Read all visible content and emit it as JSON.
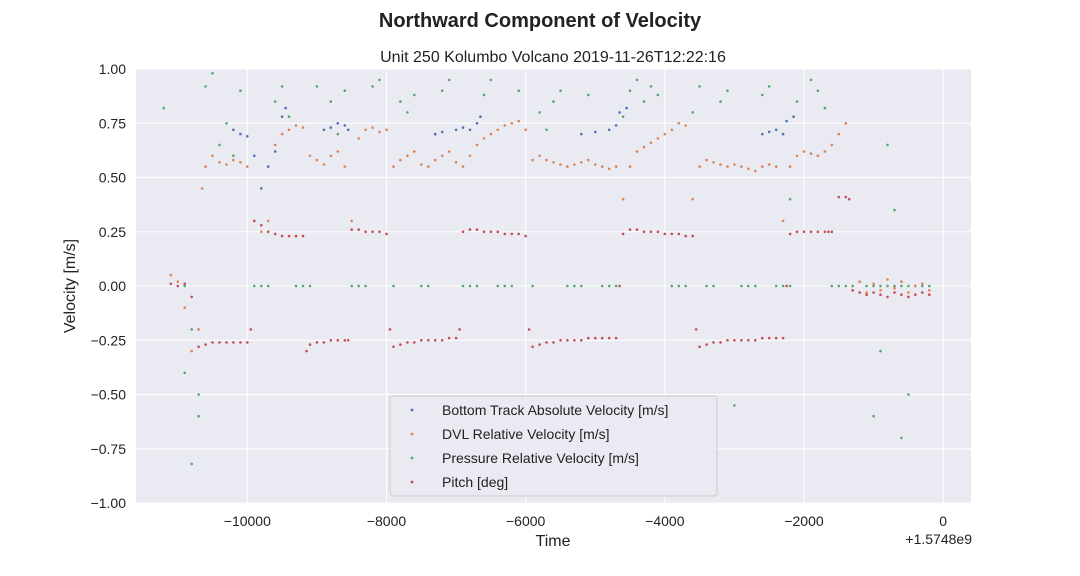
{
  "chart_data": {
    "type": "scatter",
    "title": "Northward Component of Velocity",
    "subtitle": "Unit 250 Kolumbo Volcano 2019-11-26T12:22:16",
    "xlabel": "Time",
    "ylabel": "Velocity [m/s]",
    "x_offset_label": "+1.5748e9",
    "xlim": [
      -11600,
      400
    ],
    "ylim": [
      -1.0,
      1.0
    ],
    "x_ticks": [
      -10000,
      -8000,
      -6000,
      -4000,
      -2000,
      0
    ],
    "x_tick_labels": [
      "−10000",
      "−8000",
      "−6000",
      "−4000",
      "−2000",
      "0"
    ],
    "y_ticks": [
      -1.0,
      -0.75,
      -0.5,
      -0.25,
      0.0,
      0.25,
      0.5,
      0.75,
      1.0
    ],
    "y_tick_labels": [
      "−1.00",
      "−0.75",
      "−0.50",
      "−0.25",
      "0.00",
      "0.25",
      "0.50",
      "0.75",
      "1.00"
    ],
    "grid": true,
    "legend_position": "lower-center",
    "background": "#eaeaf2",
    "series": [
      {
        "name": "Bottom Track Absolute Velocity [m/s]",
        "color": "#4c72b0",
        "x": [
          -10200,
          -10100,
          -10000,
          -9900,
          -9800,
          -9700,
          -9600,
          -9500,
          -9450,
          -8900,
          -8800,
          -8700,
          -8600,
          -8550,
          -7300,
          -7200,
          -7000,
          -6900,
          -6800,
          -6700,
          -6650,
          -5200,
          -5000,
          -4800,
          -4700,
          -4650,
          -4550,
          -2600,
          -2500,
          -2400,
          -2300,
          -2250,
          -2150
        ],
        "y": [
          0.72,
          0.7,
          0.69,
          0.6,
          0.45,
          0.55,
          0.62,
          0.78,
          0.82,
          0.72,
          0.73,
          0.75,
          0.74,
          0.72,
          0.7,
          0.71,
          0.72,
          0.73,
          0.72,
          0.75,
          0.78,
          0.7,
          0.71,
          0.72,
          0.74,
          0.8,
          0.82,
          0.7,
          0.71,
          0.72,
          0.7,
          0.76,
          0.78
        ]
      },
      {
        "name": "DVL Relative Velocity [m/s]",
        "color": "#dd8452",
        "x": [
          -11100,
          -11000,
          -10900,
          -10800,
          -10700,
          -10650,
          -10600,
          -10500,
          -10400,
          -10300,
          -10200,
          -10100,
          -10000,
          -9900,
          -9800,
          -9700,
          -9600,
          -9500,
          -9400,
          -9300,
          -9200,
          -9100,
          -9000,
          -8900,
          -8800,
          -8700,
          -8600,
          -8500,
          -8400,
          -8300,
          -8200,
          -8100,
          -8000,
          -7900,
          -7800,
          -7700,
          -7600,
          -7500,
          -7400,
          -7300,
          -7200,
          -7100,
          -7000,
          -6900,
          -6800,
          -6700,
          -6600,
          -6500,
          -6400,
          -6300,
          -6200,
          -6100,
          -6000,
          -5900,
          -5800,
          -5700,
          -5600,
          -5500,
          -5400,
          -5300,
          -5200,
          -5100,
          -5000,
          -4900,
          -4800,
          -4700,
          -4600,
          -4500,
          -4400,
          -4300,
          -4200,
          -4100,
          -4000,
          -3900,
          -3800,
          -3700,
          -3600,
          -3500,
          -3400,
          -3300,
          -3200,
          -3100,
          -3000,
          -2900,
          -2800,
          -2700,
          -2600,
          -2500,
          -2400,
          -2300,
          -2200,
          -2100,
          -2000,
          -1900,
          -1800,
          -1700,
          -1600,
          -1500,
          -1400,
          -1300,
          -1200,
          -1100,
          -1000,
          -900,
          -800,
          -700,
          -600,
          -500,
          -400,
          -300,
          -200
        ],
        "y": [
          0.05,
          0.02,
          -0.1,
          -0.3,
          -0.2,
          0.45,
          0.55,
          0.6,
          0.57,
          0.56,
          0.58,
          0.57,
          0.55,
          0.3,
          0.25,
          0.3,
          0.65,
          0.7,
          0.72,
          0.74,
          0.73,
          0.6,
          0.58,
          0.56,
          0.6,
          0.62,
          0.55,
          0.3,
          0.68,
          0.72,
          0.73,
          0.71,
          0.72,
          0.55,
          0.58,
          0.6,
          0.62,
          0.56,
          0.55,
          0.58,
          0.6,
          0.62,
          0.57,
          0.55,
          0.6,
          0.65,
          0.68,
          0.7,
          0.72,
          0.74,
          0.75,
          0.76,
          0.72,
          0.58,
          0.6,
          0.58,
          0.57,
          0.56,
          0.55,
          0.56,
          0.57,
          0.58,
          0.56,
          0.55,
          0.54,
          0.55,
          0.4,
          0.55,
          0.62,
          0.64,
          0.66,
          0.68,
          0.7,
          0.72,
          0.75,
          0.74,
          0.4,
          0.55,
          0.58,
          0.57,
          0.56,
          0.55,
          0.56,
          0.55,
          0.54,
          0.53,
          0.55,
          0.56,
          0.55,
          0.3,
          0.55,
          0.6,
          0.62,
          0.61,
          0.6,
          0.62,
          0.65,
          0.7,
          0.75,
          -0.02,
          0.02,
          -0.03,
          0.01,
          -0.02,
          0.03,
          -0.01,
          0.02,
          -0.03,
          0.0,
          0.01,
          -0.02
        ]
      },
      {
        "name": "Pressure Relative Velocity [m/s]",
        "color": "#55a868",
        "x": [
          -11200,
          -10900,
          -10800,
          -10700,
          -10600,
          -10500,
          -10400,
          -10300,
          -10200,
          -10100,
          -9900,
          -9800,
          -9700,
          -9600,
          -9500,
          -9400,
          -9300,
          -9200,
          -9100,
          -9000,
          -8800,
          -8700,
          -8600,
          -8500,
          -8400,
          -8300,
          -8200,
          -8100,
          -7900,
          -7800,
          -7700,
          -7600,
          -7500,
          -7400,
          -7300,
          -7200,
          -7100,
          -6900,
          -6800,
          -6700,
          -6600,
          -6500,
          -6400,
          -6300,
          -6200,
          -6100,
          -5900,
          -5800,
          -5700,
          -5600,
          -5500,
          -5400,
          -5300,
          -5200,
          -5100,
          -4900,
          -4800,
          -4700,
          -4600,
          -4500,
          -4400,
          -4300,
          -4200,
          -4100,
          -3900,
          -3800,
          -3700,
          -3600,
          -3500,
          -3400,
          -3300,
          -3200,
          -3100,
          -2900,
          -2800,
          -2700,
          -2600,
          -2500,
          -2400,
          -2300,
          -2200,
          -2100,
          -1900,
          -1800,
          -1700,
          -1600,
          -1500,
          -1400,
          -1300,
          -1100,
          -1000,
          -900,
          -800,
          -700,
          -600,
          -500,
          -400,
          -300,
          -200,
          -10800,
          -10700,
          -10900,
          -1000,
          -900,
          -800,
          -700,
          -600,
          -500,
          -3000,
          -2200
        ],
        "y": [
          0.82,
          0.0,
          -0.2,
          -0.5,
          0.92,
          0.98,
          0.65,
          0.75,
          0.6,
          0.9,
          0.0,
          0.0,
          0.0,
          0.85,
          0.92,
          0.78,
          0.0,
          0.0,
          0.0,
          0.92,
          0.85,
          0.7,
          0.9,
          0.0,
          0.0,
          0.0,
          0.92,
          0.95,
          0.0,
          0.85,
          0.8,
          0.88,
          0.0,
          0.0,
          0.7,
          0.9,
          0.95,
          0.0,
          0.0,
          0.0,
          0.88,
          0.95,
          0.0,
          0.0,
          0.0,
          0.9,
          0.0,
          0.8,
          0.72,
          0.85,
          0.9,
          0.0,
          0.0,
          0.0,
          0.88,
          0.0,
          0.0,
          0.0,
          0.78,
          0.9,
          0.95,
          0.85,
          0.92,
          0.88,
          0.0,
          0.0,
          0.0,
          0.8,
          0.92,
          0.0,
          0.0,
          0.85,
          0.9,
          0.0,
          0.0,
          0.0,
          0.88,
          0.92,
          0.0,
          0.0,
          0.0,
          0.85,
          0.95,
          0.9,
          0.82,
          0.0,
          0.0,
          0.0,
          0.0,
          0.0,
          0.0,
          0.0,
          0.0,
          0.0,
          0.0,
          0.0,
          0.0,
          0.0,
          0.0,
          -0.82,
          -0.6,
          -0.4,
          -0.6,
          -0.3,
          0.65,
          0.35,
          -0.7,
          -0.5,
          -0.55,
          0.4
        ]
      },
      {
        "name": "Pitch [deg]",
        "color": "#c44e52",
        "x": [
          -11100,
          -11000,
          -10900,
          -10800,
          -10700,
          -10600,
          -10500,
          -10400,
          -10300,
          -10200,
          -10100,
          -10000,
          -9950,
          -9900,
          -9800,
          -9700,
          -9600,
          -9500,
          -9400,
          -9300,
          -9200,
          -9150,
          -9100,
          -9000,
          -8900,
          -8800,
          -8700,
          -8600,
          -8550,
          -8500,
          -8400,
          -8300,
          -8200,
          -8100,
          -8000,
          -7950,
          -7900,
          -7800,
          -7700,
          -7600,
          -7500,
          -7400,
          -7300,
          -7200,
          -7100,
          -7000,
          -6950,
          -6900,
          -6800,
          -6700,
          -6600,
          -6500,
          -6400,
          -6300,
          -6200,
          -6100,
          -6000,
          -5950,
          -5900,
          -5800,
          -5700,
          -5600,
          -5500,
          -5400,
          -5300,
          -5200,
          -5100,
          -5000,
          -4900,
          -4800,
          -4700,
          -4650,
          -4600,
          -4500,
          -4400,
          -4300,
          -4200,
          -4100,
          -4000,
          -3900,
          -3800,
          -3700,
          -3600,
          -3550,
          -3500,
          -3400,
          -3300,
          -3200,
          -3100,
          -3000,
          -2900,
          -2800,
          -2700,
          -2600,
          -2500,
          -2400,
          -2300,
          -2250,
          -2200,
          -2100,
          -2000,
          -1900,
          -1800,
          -1700,
          -1650,
          -1600,
          -1500,
          -1400,
          -1350,
          -1300,
          -1200,
          -1100,
          -1000,
          -900,
          -800,
          -700,
          -600,
          -500,
          -400,
          -300,
          -200
        ],
        "y": [
          0.01,
          0.0,
          0.01,
          -0.05,
          -0.28,
          -0.27,
          -0.26,
          -0.26,
          -0.26,
          -0.26,
          -0.26,
          -0.26,
          -0.2,
          0.3,
          0.28,
          0.25,
          0.24,
          0.23,
          0.23,
          0.23,
          0.23,
          -0.3,
          -0.27,
          -0.26,
          -0.26,
          -0.25,
          -0.25,
          -0.25,
          -0.25,
          0.26,
          0.26,
          0.25,
          0.25,
          0.25,
          0.24,
          -0.2,
          -0.28,
          -0.27,
          -0.26,
          -0.26,
          -0.25,
          -0.25,
          -0.25,
          -0.25,
          -0.24,
          -0.24,
          -0.2,
          0.25,
          0.26,
          0.26,
          0.25,
          0.25,
          0.25,
          0.24,
          0.24,
          0.24,
          0.23,
          -0.2,
          -0.28,
          -0.27,
          -0.26,
          -0.26,
          -0.25,
          -0.25,
          -0.25,
          -0.25,
          -0.24,
          -0.24,
          -0.24,
          -0.24,
          -0.24,
          0.0,
          0.24,
          0.26,
          0.26,
          0.25,
          0.25,
          0.25,
          0.24,
          0.24,
          0.24,
          0.23,
          0.23,
          -0.2,
          -0.28,
          -0.27,
          -0.26,
          -0.26,
          -0.25,
          -0.25,
          -0.25,
          -0.25,
          -0.25,
          -0.24,
          -0.24,
          -0.24,
          -0.24,
          0.0,
          0.24,
          0.25,
          0.25,
          0.25,
          0.25,
          0.25,
          0.25,
          0.25,
          0.41,
          0.41,
          0.4,
          -0.02,
          -0.03,
          -0.04,
          -0.03,
          -0.04,
          -0.05,
          -0.03,
          -0.04,
          -0.05,
          -0.04,
          -0.03,
          -0.04
        ]
      }
    ]
  }
}
